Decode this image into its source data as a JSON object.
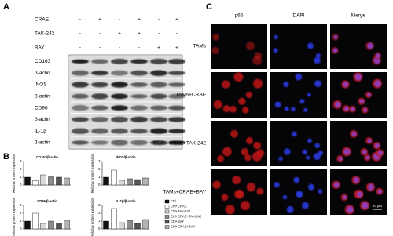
{
  "panels": {
    "A": {
      "label": "A",
      "conditions": [
        {
          "name": "CRAE",
          "signs": [
            "-",
            "+",
            "-",
            "+",
            "-",
            "+"
          ]
        },
        {
          "name": "TAK-242",
          "signs": [
            "-",
            "-",
            "+",
            "+",
            "-",
            "-"
          ]
        },
        {
          "name": "BAY",
          "signs": [
            "-",
            "-",
            "-",
            "-",
            "+",
            "+"
          ]
        }
      ],
      "blots": [
        "CD163",
        "β-actin",
        "iNOS",
        "β-actin",
        "CD86",
        "β-actin",
        "IL-1β",
        "β-actin"
      ]
    },
    "B": {
      "label": "B",
      "y_axis_label": "Relative protein expression",
      "legend": [
        "Ctrl",
        "Ctrl+CRAE",
        "Ctrl+TAK-242",
        "Ctrl+CRAE+TAK-242",
        "Ctrl+BAY",
        "Ctrl+CRAE+BAY"
      ],
      "colors": [
        "#111111",
        "#ffffff",
        "#d9d9d9",
        "#8c8c8c",
        "#555555",
        "#b3b3b3"
      ],
      "charts": [
        {
          "type": "bar",
          "title": "CD163/β-actin",
          "values": [
            1.0,
            0.55,
            1.3,
            1.05,
            1.0,
            0.9
          ],
          "ylim": [
            0,
            3
          ],
          "yticks": [
            0,
            1,
            2,
            3
          ]
        },
        {
          "type": "bar",
          "title": "iNOS/β-actin",
          "values": [
            1.0,
            1.9,
            0.6,
            0.8,
            0.7,
            0.9
          ],
          "ylim": [
            0,
            3
          ],
          "yticks": [
            0,
            1,
            2,
            3
          ]
        },
        {
          "type": "bar",
          "title": "CD86/β-actin",
          "values": [
            1.0,
            2.0,
            0.7,
            1.0,
            0.75,
            1.1
          ],
          "ylim": [
            0,
            3
          ],
          "yticks": [
            0,
            1,
            2,
            3
          ]
        },
        {
          "type": "bar",
          "title": "IL-1β/β-actin",
          "values": [
            1.0,
            2.6,
            0.8,
            1.1,
            0.7,
            1.2
          ],
          "ylim": [
            0,
            3
          ],
          "yticks": [
            0,
            1,
            2,
            3
          ]
        }
      ]
    },
    "C": {
      "label": "C",
      "columns": [
        "p65",
        "DAPI",
        "Merge"
      ],
      "rows": [
        "TAMs",
        "TAMs+CRAE",
        "TAMs+CRAE+TAK-242",
        "TAMs+CRAE+BAY"
      ],
      "scale_bar": "20 μm"
    }
  }
}
